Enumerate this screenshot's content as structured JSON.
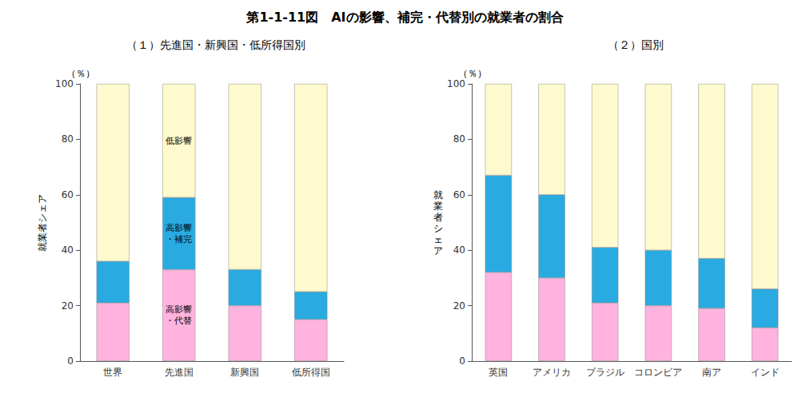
{
  "chart_data": [
    {
      "type": "bar",
      "title": "第1-1-11図　AIの影響、補完・代替別の就業者の割合",
      "subtitle": "（１）先進国・新興国・低所得国別",
      "ylabel": "就業者シェア",
      "categories": [
        "世界",
        "先進国",
        "新興国",
        "低所得国"
      ],
      "series": [
        {
          "name": "高影響\n・代替",
          "color": "#FFB3DE",
          "values": [
            21,
            33,
            20,
            15
          ]
        },
        {
          "name": "高影響\n・補完",
          "color": "#29ABE2",
          "values": [
            15,
            26,
            13,
            10
          ]
        },
        {
          "name": "低影響",
          "color": "#FFFACD",
          "values": [
            64,
            41,
            67,
            75
          ]
        }
      ],
      "annotations": [
        {
          "text": "高影響\n・代替",
          "x": "先進国"
        },
        {
          "text": "高影響\n・補完",
          "x": "先進国"
        },
        {
          "text": "低影響",
          "x": "先進国"
        },
        {
          "text": "（％）"
        }
      ],
      "stacked": true,
      "grid": false,
      "ylim": [
        0,
        100
      ],
      "yticks": [
        0,
        20,
        40,
        60,
        80,
        100
      ]
    },
    {
      "type": "bar",
      "subtitle": "（２）国別",
      "ylabel": "就\n業\n者\nシ\nェ\nア",
      "categories": [
        "英国",
        "アメリカ",
        "ブラジル",
        "コロンビア",
        "南ア",
        "インド"
      ],
      "series": [
        {
          "name": "高影響\n・代替",
          "color": "#FFB3DE",
          "values": [
            32,
            30,
            21,
            20,
            19,
            12
          ]
        },
        {
          "name": "高影響\n・補完",
          "color": "#29ABE2",
          "values": [
            35,
            30,
            20,
            20,
            18,
            14
          ]
        },
        {
          "name": "低影響",
          "color": "#FFFACD",
          "values": [
            33,
            40,
            59,
            60,
            63,
            74
          ]
        }
      ],
      "annotations": [
        {
          "text": "（％）"
        }
      ],
      "stacked": true,
      "grid": false,
      "ylim": [
        0,
        100
      ],
      "yticks": [
        0,
        20,
        40,
        60,
        80,
        100
      ]
    }
  ]
}
